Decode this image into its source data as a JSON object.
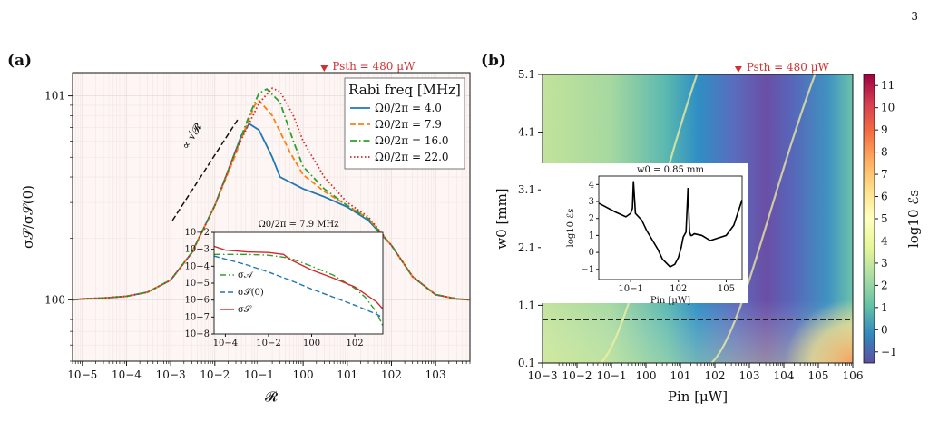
{
  "page_number": "3",
  "chart_data": [
    {
      "type": "line",
      "panel_label": "(a)",
      "xscale": "log",
      "yscale": "log",
      "xlabel": "𝓡",
      "ylabel": "σ𝒮/σ𝒮(0)",
      "xlim": [
        6e-06,
        6000
      ],
      "ylim": [
        0.5,
        13
      ],
      "x_ticks": [
        "10−5",
        "10−4",
        "10−3",
        "10−2",
        "10−1",
        "100",
        "101",
        "102",
        "103"
      ],
      "y_ticks": [
        "100",
        "101"
      ],
      "legend_title": "Rabi freq [MHz]",
      "legend_loc": "top-right",
      "grid": true,
      "marker_annotation": {
        "label": "Psth = 480 μW",
        "x": 3
      },
      "slope_annotation": "∝ √𝓡",
      "series": [
        {
          "name": "Ω0/2π = 4.0",
          "color": "#1f77b4",
          "style": "solid",
          "x": [
            6e-06,
            1e-05,
            3e-05,
            0.0001,
            0.0003,
            0.001,
            0.003,
            0.01,
            0.02,
            0.04,
            0.06,
            0.1,
            0.2,
            0.3,
            1,
            3,
            10,
            30,
            100,
            300,
            1000,
            3000,
            6000
          ],
          "y": [
            1.0,
            1.01,
            1.02,
            1.04,
            1.09,
            1.25,
            1.7,
            2.9,
            4.3,
            6.4,
            7.3,
            6.8,
            5.0,
            4.0,
            3.5,
            3.2,
            2.85,
            2.45,
            1.85,
            1.3,
            1.06,
            1.01,
            1.0
          ]
        },
        {
          "name": "Ω0/2π = 7.9",
          "color": "#ff7f0e",
          "style": "dashed",
          "x": [
            6e-06,
            1e-05,
            3e-05,
            0.0001,
            0.0003,
            0.001,
            0.003,
            0.01,
            0.03,
            0.05,
            0.08,
            0.1,
            0.2,
            0.5,
            1,
            3,
            10,
            30,
            100,
            300,
            1000,
            3000,
            6000
          ],
          "y": [
            1.0,
            1.01,
            1.02,
            1.04,
            1.09,
            1.25,
            1.7,
            2.9,
            5.2,
            7.0,
            9.0,
            9.5,
            8.0,
            5.3,
            4.1,
            3.4,
            2.9,
            2.5,
            1.85,
            1.3,
            1.06,
            1.01,
            1.0
          ]
        },
        {
          "name": "Ω0/2π = 16.0",
          "color": "#2ca02c",
          "style": "dashdot",
          "x": [
            6e-06,
            1e-05,
            3e-05,
            0.0001,
            0.0003,
            0.001,
            0.003,
            0.01,
            0.03,
            0.06,
            0.1,
            0.15,
            0.3,
            0.6,
            1,
            3,
            10,
            30,
            100,
            300,
            1000,
            3000,
            6000
          ],
          "y": [
            1.0,
            1.01,
            1.02,
            1.04,
            1.09,
            1.25,
            1.7,
            2.9,
            5.4,
            8.0,
            10.3,
            10.8,
            9.3,
            6.0,
            4.5,
            3.5,
            2.9,
            2.5,
            1.85,
            1.3,
            1.06,
            1.01,
            1.0
          ]
        },
        {
          "name": "Ω0/2π = 22.0",
          "color": "#d62728",
          "style": "dotted",
          "x": [
            6e-06,
            1e-05,
            3e-05,
            0.0001,
            0.0003,
            0.001,
            0.003,
            0.01,
            0.03,
            0.1,
            0.2,
            0.3,
            0.6,
            1,
            3,
            10,
            30,
            100,
            300,
            1000,
            3000,
            6000
          ],
          "y": [
            1.0,
            1.01,
            1.02,
            1.04,
            1.09,
            1.25,
            1.7,
            2.9,
            5.4,
            9.2,
            10.9,
            10.5,
            8.0,
            6.0,
            4.0,
            3.0,
            2.55,
            1.85,
            1.3,
            1.06,
            1.01,
            1.0
          ]
        }
      ],
      "inset": {
        "title": "Ω0/2π = 7.9 MHz",
        "xscale": "log",
        "yscale": "log",
        "xlim": [
          3e-05,
          2000
        ],
        "ylim": [
          1e-08,
          0.01
        ],
        "x_ticks": [
          "10−4",
          "10−2",
          "100",
          "102"
        ],
        "y_ticks": [
          "10−8",
          "10−7",
          "10−6",
          "10−5",
          "10−4",
          "10−3",
          "10−2"
        ],
        "series": [
          {
            "name": "σ𝒜",
            "color": "#2ca02c",
            "style": "dashdot",
            "x": [
              3e-05,
              0.0001,
              0.001,
              0.01,
              0.1,
              1,
              10,
              100,
              300,
              1000,
              2000
            ],
            "y": [
              0.0005,
              0.0005,
              0.0005,
              0.00045,
              0.0003,
              0.0001,
              3e-05,
              5e-06,
              1.5e-06,
              2e-07,
              3e-08
            ]
          },
          {
            "name": "σ𝒮(0)",
            "color": "#1f77b4",
            "style": "dashed",
            "x": [
              3e-05,
              0.001,
              0.01,
              0.1,
              1,
              10,
              100,
              1000,
              2000
            ],
            "y": [
              0.0004,
              0.00012,
              4.5e-05,
              1.5e-05,
              4.5e-06,
              1.5e-06,
              5e-07,
              1.5e-07,
              9e-08
            ]
          },
          {
            "name": "σ𝒮",
            "color": "#d62728",
            "style": "solid",
            "x": [
              3e-05,
              0.0001,
              0.0003,
              0.001,
              0.01,
              0.05,
              0.1,
              1,
              10,
              100,
              1000,
              2000
            ],
            "y": [
              0.0015,
              0.0009,
              0.0008,
              0.0007,
              0.00065,
              0.0005,
              0.00025,
              6e-05,
              2e-05,
              6e-06,
              8e-07,
              3e-07
            ]
          }
        ]
      }
    },
    {
      "type": "heatmap",
      "panel_label": "(b)",
      "xscale": "log",
      "xlabel": "Pin [μW]",
      "ylabel": "w0 [mm]",
      "xlim": [
        0.001,
        1000000.0
      ],
      "ylim": [
        0.1,
        5.1
      ],
      "x_ticks": [
        "10−3",
        "10−2",
        "10−1",
        "100",
        "101",
        "102",
        "103",
        "104",
        "105",
        "106"
      ],
      "y_ticks": [
        "0.1",
        "1.1",
        "2.1",
        "3.1",
        "4.1",
        "5.1"
      ],
      "colorbar_label": "log10 ℰs",
      "colorbar_range": [
        -1.5,
        11.5
      ],
      "colorbar_ticks": [
        "−1",
        "0",
        "1",
        "2",
        "3",
        "4",
        "5",
        "6",
        "7",
        "8",
        "9",
        "10",
        "11"
      ],
      "marker_annotation": {
        "label": "Psth = 480 μW",
        "x": 480
      },
      "dashed_line_w0": 0.85,
      "inset": {
        "title": "w0 = 0.85 mm",
        "xlabel": "Pin [μW]",
        "ylabel": "log10 ℰs",
        "xscale": "log",
        "xlim": [
          0.001,
          1000000.0
        ],
        "ylim": [
          -1.6,
          4.5
        ],
        "x_ticks": [
          "10−1",
          "102",
          "105"
        ],
        "y_ticks": [
          "−1",
          "0",
          "1",
          "2",
          "3",
          "4"
        ],
        "series": [
          {
            "name": "",
            "color": "#000000",
            "style": "solid",
            "x": [
              0.001,
              0.01,
              0.05,
              0.1,
              0.13,
              0.15,
              0.2,
              0.5,
              1,
              5,
              10,
              30,
              60,
              100,
              150,
              200,
              300,
              400,
              500,
              600,
              700,
              1000,
              3000,
              10000.0,
              100000.0,
              300000.0,
              1000000.0
            ],
            "y": [
              2.9,
              2.4,
              2.1,
              2.3,
              2.6,
              4.2,
              2.3,
              1.9,
              1.3,
              0.2,
              -0.4,
              -0.85,
              -0.7,
              -0.3,
              0.3,
              0.9,
              1.2,
              3.8,
              1.2,
              1.0,
              1.0,
              1.1,
              1.0,
              0.7,
              1.0,
              1.6,
              3.1
            ]
          }
        ]
      }
    }
  ]
}
